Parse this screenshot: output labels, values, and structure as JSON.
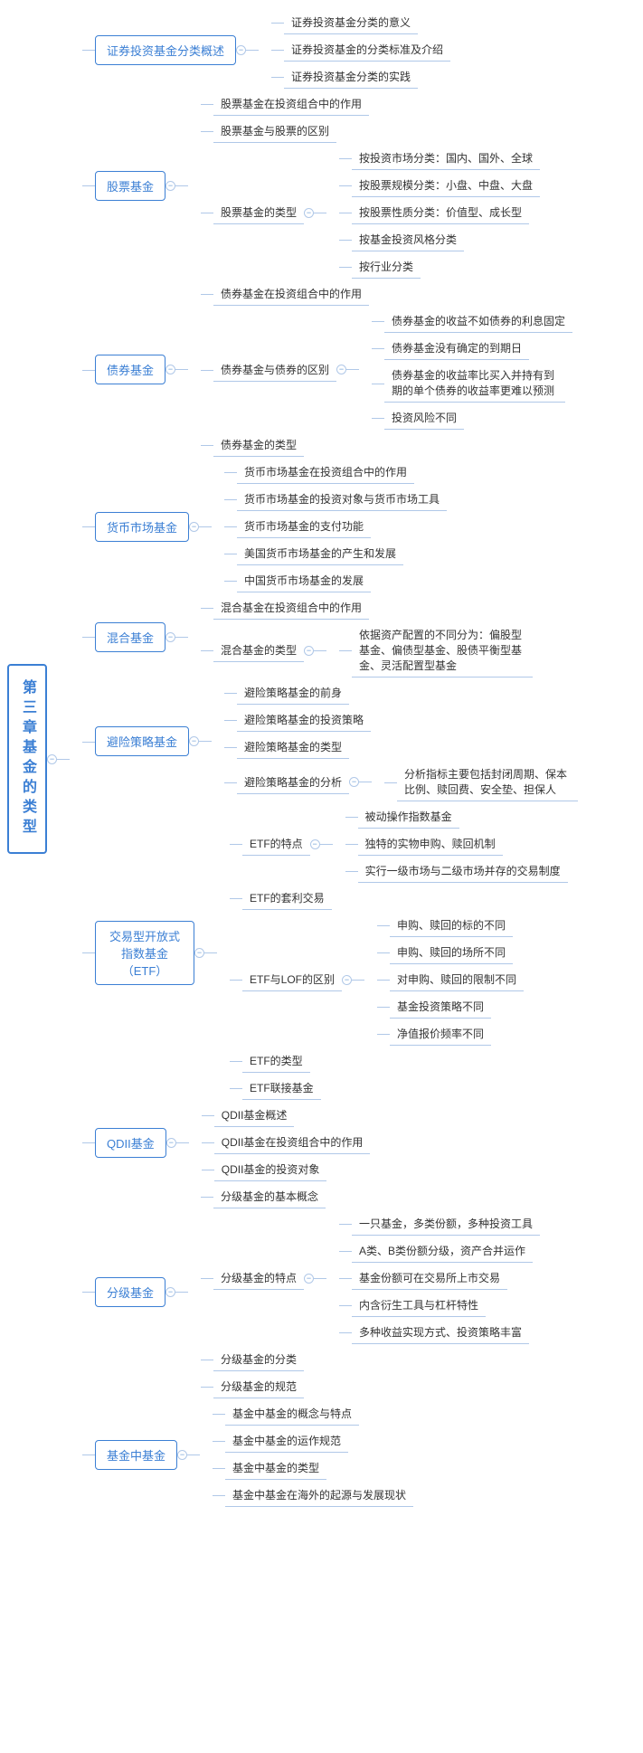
{
  "root": "第三章基金的类型",
  "colors": {
    "primary": "#3b7fd4",
    "line": "#b0c8e8",
    "text": "#333333",
    "bg": "#ffffff"
  },
  "branches": [
    {
      "label": "证券投资基金分类概述",
      "children": [
        {
          "label": "证券投资基金分类的意义"
        },
        {
          "label": "证券投资基金的分类标准及介绍"
        },
        {
          "label": "证券投资基金分类的实践"
        }
      ]
    },
    {
      "label": "股票基金",
      "children": [
        {
          "label": "股票基金在投资组合中的作用"
        },
        {
          "label": "股票基金与股票的区别"
        },
        {
          "label": "股票基金的类型",
          "children": [
            {
              "label": "按投资市场分类：国内、国外、全球"
            },
            {
              "label": "按股票规模分类：小盘、中盘、大盘"
            },
            {
              "label": "按股票性质分类：价值型、成长型"
            },
            {
              "label": "按基金投资风格分类"
            },
            {
              "label": "按行业分类"
            }
          ]
        }
      ]
    },
    {
      "label": "债券基金",
      "children": [
        {
          "label": "债券基金在投资组合中的作用"
        },
        {
          "label": "债券基金与债券的区别",
          "children": [
            {
              "label": "债券基金的收益不如债券的利息固定"
            },
            {
              "label": "债券基金没有确定的到期日"
            },
            {
              "label": "债券基金的收益率比买入并持有到期的单个债券的收益率更难以预测",
              "wide": true
            },
            {
              "label": "投资风险不同"
            }
          ]
        },
        {
          "label": "债券基金的类型"
        }
      ]
    },
    {
      "label": "货币市场基金",
      "children": [
        {
          "label": "货币市场基金在投资组合中的作用"
        },
        {
          "label": "货币市场基金的投资对象与货币市场工具"
        },
        {
          "label": "货币市场基金的支付功能"
        },
        {
          "label": "美国货币市场基金的产生和发展"
        },
        {
          "label": "中国货币市场基金的发展"
        }
      ]
    },
    {
      "label": "混合基金",
      "children": [
        {
          "label": "混合基金在投资组合中的作用"
        },
        {
          "label": "混合基金的类型",
          "children": [
            {
              "label": "依据资产配置的不同分为：偏股型基金、偏债型基金、股债平衡型基金、灵活配置型基金",
              "wide": true
            }
          ]
        }
      ]
    },
    {
      "label": "避险策略基金",
      "children": [
        {
          "label": "避险策略基金的前身"
        },
        {
          "label": "避险策略基金的投资策略"
        },
        {
          "label": "避险策略基金的类型"
        },
        {
          "label": "避险策略基金的分析",
          "children": [
            {
              "label": "分析指标主要包括封闭周期、保本比例、赎回费、安全垫、担保人",
              "wide": true
            }
          ]
        }
      ]
    },
    {
      "label": "交易型开放式指数基金（ETF）",
      "wide": true,
      "children": [
        {
          "label": "ETF的特点",
          "children": [
            {
              "label": "被动操作指数基金"
            },
            {
              "label": "独特的实物申购、赎回机制"
            },
            {
              "label": "实行一级市场与二级市场并存的交易制度"
            }
          ]
        },
        {
          "label": "ETF的套利交易"
        },
        {
          "label": "ETF与LOF的区别",
          "children": [
            {
              "label": "申购、赎回的标的不同"
            },
            {
              "label": "申购、赎回的场所不同"
            },
            {
              "label": "对申购、赎回的限制不同"
            },
            {
              "label": "基金投资策略不同"
            },
            {
              "label": "净值报价频率不同"
            }
          ]
        },
        {
          "label": "ETF的类型"
        },
        {
          "label": "ETF联接基金"
        }
      ]
    },
    {
      "label": "QDII基金",
      "children": [
        {
          "label": "QDII基金概述"
        },
        {
          "label": "QDII基金在投资组合中的作用"
        },
        {
          "label": "QDII基金的投资对象"
        }
      ]
    },
    {
      "label": "分级基金",
      "children": [
        {
          "label": "分级基金的基本概念"
        },
        {
          "label": "分级基金的特点",
          "children": [
            {
              "label": "一只基金，多类份额，多种投资工具"
            },
            {
              "label": "A类、B类份额分级，资产合并运作"
            },
            {
              "label": "基金份额可在交易所上市交易"
            },
            {
              "label": "内含衍生工具与杠杆特性"
            },
            {
              "label": "多种收益实现方式、投资策略丰富"
            }
          ]
        },
        {
          "label": "分级基金的分类"
        },
        {
          "label": "分级基金的规范"
        }
      ]
    },
    {
      "label": "基金中基金",
      "children": [
        {
          "label": "基金中基金的概念与特点"
        },
        {
          "label": "基金中基金的运作规范"
        },
        {
          "label": "基金中基金的类型"
        },
        {
          "label": "基金中基金在海外的起源与发展现状"
        }
      ]
    }
  ]
}
